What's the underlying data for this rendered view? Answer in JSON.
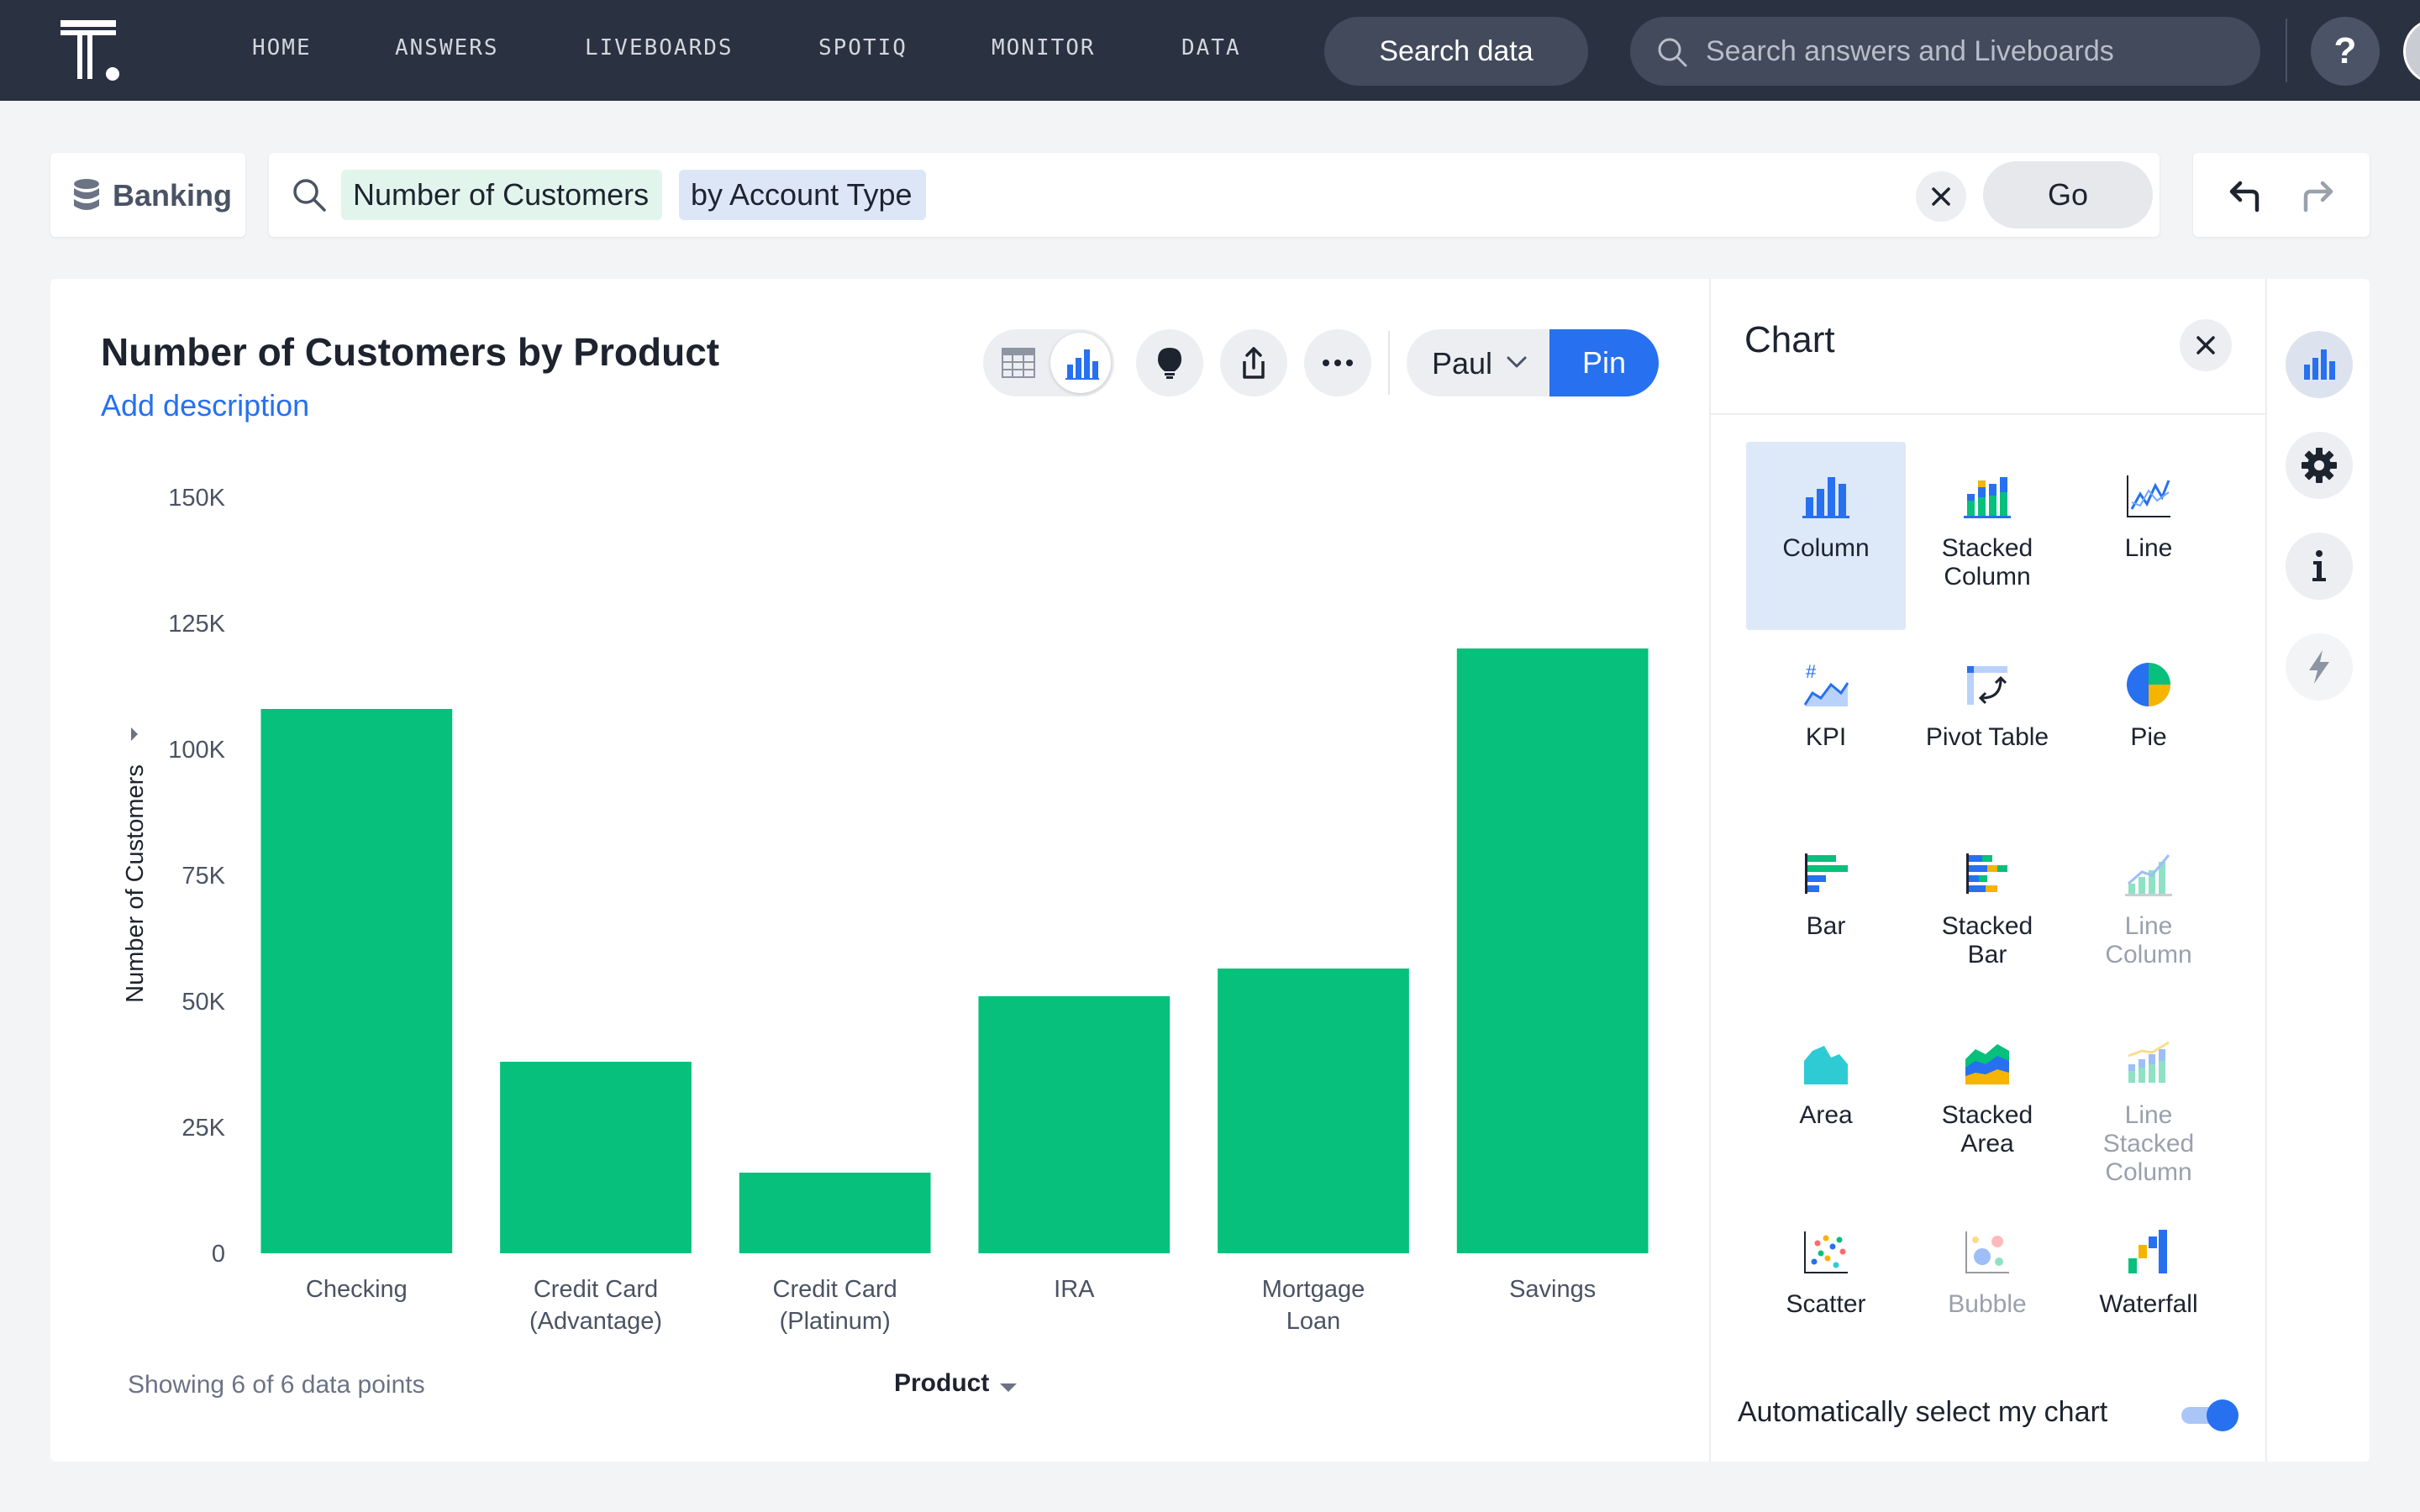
{
  "nav": {
    "items": [
      "HOME",
      "ANSWERS",
      "LIVEBOARDS",
      "SPOTIQ",
      "MONITOR",
      "DATA"
    ],
    "search_data_label": "Search data",
    "global_search_placeholder": "Search answers and Liveboards",
    "help_label": "?"
  },
  "search": {
    "source": "Banking",
    "tokens": {
      "measure": "Number of Customers",
      "attribute": "by Account Type"
    },
    "go_label": "Go"
  },
  "answer": {
    "title": "Number of Customers by Product",
    "add_description": "Add description",
    "liveboard_user": "Paul",
    "pin_label": "Pin",
    "footer_count": "Showing 6 of 6 data points",
    "x_axis_column": "Product"
  },
  "chart_data": {
    "type": "bar",
    "categories": [
      [
        "Checking"
      ],
      [
        "Credit Card",
        "(Advantage)"
      ],
      [
        "Credit Card",
        "(Platinum)"
      ],
      [
        "IRA"
      ],
      [
        "Mortgage",
        "Loan"
      ],
      [
        "Savings"
      ]
    ],
    "values": [
      108000,
      38000,
      16000,
      51000,
      56500,
      120000
    ],
    "ylabel": "Number of Customers",
    "xlabel": "Product",
    "ylim": [
      0,
      150000
    ],
    "yticks": [
      0,
      25000,
      50000,
      75000,
      100000,
      125000,
      150000
    ],
    "ytick_labels": [
      "0",
      "25K",
      "50K",
      "75K",
      "100K",
      "125K",
      "150K"
    ],
    "bar_color": "#06c07c",
    "grid": false,
    "legend": "none"
  },
  "chart_panel": {
    "title": "Chart",
    "types": [
      {
        "label": [
          "Column"
        ],
        "icon": "column-chart-icon",
        "selected": true,
        "disabled": false
      },
      {
        "label": [
          "Stacked",
          "Column"
        ],
        "icon": "stacked-column-chart-icon",
        "selected": false,
        "disabled": false
      },
      {
        "label": [
          "Line"
        ],
        "icon": "line-chart-icon",
        "selected": false,
        "disabled": false
      },
      {
        "label": [
          "KPI"
        ],
        "icon": "kpi-chart-icon",
        "selected": false,
        "disabled": false
      },
      {
        "label": [
          "Pivot Table"
        ],
        "icon": "pivot-table-icon",
        "selected": false,
        "disabled": false
      },
      {
        "label": [
          "Pie"
        ],
        "icon": "pie-chart-icon",
        "selected": false,
        "disabled": false
      },
      {
        "label": [
          "Bar"
        ],
        "icon": "bar-chart-icon",
        "selected": false,
        "disabled": false
      },
      {
        "label": [
          "Stacked",
          "Bar"
        ],
        "icon": "stacked-bar-chart-icon",
        "selected": false,
        "disabled": false
      },
      {
        "label": [
          "Line",
          "Column"
        ],
        "icon": "line-column-chart-icon",
        "selected": false,
        "disabled": true
      },
      {
        "label": [
          "Area"
        ],
        "icon": "area-chart-icon",
        "selected": false,
        "disabled": false
      },
      {
        "label": [
          "Stacked",
          "Area"
        ],
        "icon": "stacked-area-chart-icon",
        "selected": false,
        "disabled": false
      },
      {
        "label": [
          "Line",
          "Stacked",
          "Column"
        ],
        "icon": "line-stacked-column-chart-icon",
        "selected": false,
        "disabled": true
      },
      {
        "label": [
          "Scatter"
        ],
        "icon": "scatter-chart-icon",
        "selected": false,
        "disabled": false
      },
      {
        "label": [
          "Bubble"
        ],
        "icon": "bubble-chart-icon",
        "selected": false,
        "disabled": true
      },
      {
        "label": [
          "Waterfall"
        ],
        "icon": "waterfall-chart-icon",
        "selected": false,
        "disabled": false
      }
    ],
    "auto_select_label": "Automatically select my chart",
    "auto_select_on": true
  },
  "colors": {
    "nav_bg": "#2a3141",
    "accent": "#2770ef",
    "measure_token": "#e2f5ec",
    "attribute_token": "#dce6f7"
  }
}
